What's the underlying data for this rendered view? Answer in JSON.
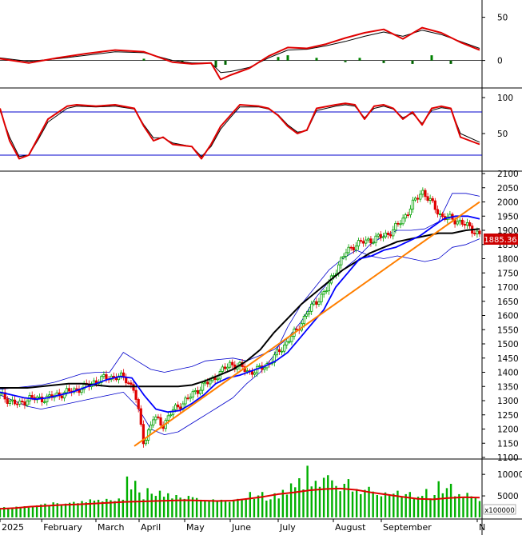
{
  "colors": {
    "background": "#ffffff",
    "border": "#000000",
    "grid_line": "#000000",
    "up_candle": "#00a000",
    "down_candle": "#e00000",
    "macd_line": "#e00000",
    "signal_line": "#000000",
    "histogram_pos": "#008000",
    "histogram_neg": "#006400",
    "stoch_k": "#e00000",
    "stoch_d": "#000000",
    "stoch_levels": "#0000cc",
    "ma_short": "#0000ff",
    "ma_long": "#000000",
    "bollinger": "#0000cc",
    "trendline": "#ff7f00",
    "volume_bars": "#00b000",
    "volume_ma": "#e00000",
    "price_tag_bg": "#cc0000",
    "price_tag_text": "#ffffff"
  },
  "chart_data": [
    {
      "type": "line",
      "panel": "macd",
      "ylim": [
        -30,
        70
      ],
      "yticks": [
        0,
        50
      ],
      "x": [
        0,
        6,
        12,
        18,
        24,
        30,
        36,
        40,
        44,
        46,
        48,
        52,
        56,
        60,
        64,
        68,
        72,
        76,
        80,
        84,
        88,
        92,
        96,
        100
      ],
      "series": [
        {
          "values": [
            2,
            -3,
            3,
            8,
            12,
            10,
            -2,
            -4,
            -3,
            -22,
            -17,
            -9,
            5,
            15,
            14,
            19,
            26,
            32,
            36,
            25,
            38,
            32,
            21,
            12
          ]
        },
        {
          "values": [
            3,
            -1,
            2,
            6,
            10,
            9,
            0,
            -3,
            -3,
            -14,
            -13,
            -8,
            3,
            12,
            13,
            17,
            22,
            28,
            33,
            28,
            35,
            30,
            22,
            14
          ]
        }
      ],
      "histogram": [
        {
          "x": 30,
          "value": 2
        },
        {
          "x": 38,
          "value": -3
        },
        {
          "x": 45,
          "value": -8
        },
        {
          "x": 47,
          "value": -5
        },
        {
          "x": 58,
          "value": 4
        },
        {
          "x": 60,
          "value": 6
        },
        {
          "x": 66,
          "value": 3
        },
        {
          "x": 72,
          "value": -2
        },
        {
          "x": 75,
          "value": 3
        },
        {
          "x": 80,
          "value": -3
        },
        {
          "x": 86,
          "value": -4
        },
        {
          "x": 90,
          "value": 6
        },
        {
          "x": 94,
          "value": -4
        }
      ]
    },
    {
      "type": "line",
      "panel": "stochastic",
      "ylim": [
        0,
        110
      ],
      "yticks": [
        50,
        100
      ],
      "levels": [
        20,
        80
      ],
      "x": [
        0,
        2,
        4,
        6,
        8,
        10,
        14,
        16,
        20,
        24,
        28,
        30,
        32,
        34,
        36,
        40,
        42,
        44,
        46,
        48,
        50,
        54,
        56,
        58,
        60,
        62,
        64,
        66,
        70,
        72,
        74,
        76,
        78,
        80,
        82,
        84,
        86,
        88,
        90,
        92,
        94,
        96,
        100
      ],
      "series": [
        {
          "values": [
            85,
            40,
            15,
            20,
            45,
            70,
            88,
            90,
            88,
            90,
            85,
            60,
            40,
            45,
            35,
            32,
            15,
            35,
            60,
            75,
            90,
            88,
            85,
            75,
            60,
            50,
            55,
            85,
            90,
            92,
            90,
            70,
            88,
            90,
            85,
            70,
            80,
            62,
            85,
            88,
            85,
            45,
            35
          ]
        },
        {
          "values": [
            82,
            45,
            18,
            20,
            42,
            66,
            85,
            88,
            87,
            88,
            84,
            62,
            44,
            44,
            37,
            32,
            18,
            32,
            56,
            72,
            87,
            87,
            84,
            76,
            62,
            52,
            54,
            82,
            88,
            90,
            88,
            72,
            85,
            88,
            84,
            72,
            78,
            64,
            82,
            86,
            84,
            50,
            38
          ]
        }
      ]
    },
    {
      "type": "candlestick",
      "panel": "price",
      "ylim": [
        1100,
        2100
      ],
      "yticks": [
        1100,
        1150,
        1200,
        1250,
        1300,
        1350,
        1400,
        1450,
        1500,
        1550,
        1600,
        1650,
        1700,
        1750,
        1800,
        1850,
        1900,
        1950,
        2000,
        2050,
        2100
      ],
      "last_price": "1885.36",
      "x_labels": [
        "2025",
        "February",
        "March",
        "April",
        "May",
        "June",
        "July",
        "August",
        "September",
        "N"
      ],
      "x_label_positions": [
        0,
        8.7,
        20,
        29,
        38.5,
        48,
        58,
        69.5,
        79.5,
        99.5
      ],
      "close": [
        1320,
        1300,
        1285,
        1310,
        1305,
        1310,
        1320,
        1330,
        1340,
        1350,
        1370,
        1380,
        1385,
        1380,
        1340,
        1150,
        1240,
        1215,
        1265,
        1290,
        1320,
        1350,
        1370,
        1400,
        1430,
        1420,
        1400,
        1410,
        1430,
        1470,
        1510,
        1550,
        1610,
        1650,
        1690,
        1760,
        1820,
        1850,
        1860,
        1870,
        1880,
        1900,
        1940,
        1990,
        2040,
        1950,
        1930,
        1885.36
      ],
      "close_x": [
        0,
        2,
        4,
        6,
        8,
        10,
        12,
        14,
        16,
        18,
        20,
        22,
        24,
        26,
        28,
        30,
        32,
        34,
        36,
        38,
        40,
        42,
        44,
        46,
        48,
        50,
        52,
        54,
        56,
        58,
        60,
        62,
        64,
        66,
        68,
        70,
        72,
        74,
        76,
        78,
        80,
        82,
        84,
        86,
        88,
        92,
        96,
        100
      ],
      "ma_short": [
        1330,
        1320,
        1310,
        1305,
        1310,
        1320,
        1330,
        1345,
        1360,
        1375,
        1385,
        1380,
        1320,
        1270,
        1260,
        1265,
        1290,
        1320,
        1360,
        1380,
        1390,
        1405,
        1420,
        1440,
        1470,
        1520,
        1570,
        1620,
        1700,
        1750,
        1800,
        1810,
        1830,
        1840,
        1860,
        1880,
        1910,
        1940,
        1950,
        1950,
        1940
      ],
      "ma_long": [
        1345,
        1345,
        1345,
        1350,
        1355,
        1360,
        1360,
        1355,
        1350,
        1350,
        1350,
        1350,
        1350,
        1350,
        1355,
        1370,
        1390,
        1410,
        1440,
        1480,
        1540,
        1590,
        1640,
        1680,
        1720,
        1760,
        1790,
        1820,
        1840,
        1860,
        1870,
        1880,
        1890,
        1890,
        1900,
        1905
      ],
      "bollinger_upper": [
        1340,
        1345,
        1350,
        1355,
        1365,
        1380,
        1395,
        1400,
        1400,
        1470,
        1440,
        1410,
        1400,
        1410,
        1420,
        1440,
        1445,
        1450,
        1440,
        1460,
        1480,
        1520,
        1580,
        1660,
        1720,
        1760,
        1800,
        1850,
        1880,
        1900,
        1900,
        1905,
        1930,
        2030,
        2030,
        2020
      ],
      "bollinger_lower": [
        1320,
        1300,
        1280,
        1270,
        1280,
        1290,
        1300,
        1310,
        1320,
        1330,
        1280,
        1200,
        1180,
        1190,
        1220,
        1250,
        1280,
        1310,
        1360,
        1400,
        1460,
        1560,
        1640,
        1700,
        1760,
        1800,
        1830,
        1810,
        1800,
        1810,
        1800,
        1790,
        1800,
        1840,
        1850,
        1870
      ],
      "trendline": {
        "x": [
          28,
          100
        ],
        "y": [
          1140,
          2000
        ]
      }
    },
    {
      "type": "bar",
      "panel": "volume",
      "ylim": [
        0,
        13000
      ],
      "yticks": [
        5000,
        10000
      ],
      "unit_label": "x100000",
      "values": [
        2200,
        2400,
        2100,
        2300,
        2500,
        2200,
        2600,
        2300,
        2500,
        2800,
        3000,
        3200,
        2800,
        3500,
        3300,
        3000,
        3200,
        3400,
        3600,
        3300,
        3800,
        3500,
        4200,
        3900,
        4100,
        3700,
        4300,
        4000,
        3800,
        4400,
        4100,
        9500,
        6500,
        8500,
        5800,
        4200,
        6800,
        5500,
        5000,
        6200,
        4800,
        5600,
        4400,
        5200,
        4600,
        4300,
        5000,
        4700,
        4500,
        4100,
        3800,
        4000,
        4200,
        3900,
        4100,
        3700,
        3600,
        3900,
        4300,
        4100,
        4400,
        5900,
        4300,
        5100,
        5900,
        3900,
        4200,
        5600,
        4400,
        6400,
        5300,
        7900,
        7000,
        9100,
        6500,
        12000,
        7200,
        8500,
        7100,
        9200,
        9800,
        8600,
        7300,
        6100,
        7800,
        8900,
        6000,
        6600,
        5400,
        6400,
        7100,
        6000,
        5200,
        4900,
        5800,
        5100,
        5500,
        6200,
        4900,
        5400,
        5900,
        4500,
        4800,
        5000,
        6600,
        4400,
        5200,
        8400,
        5600,
        6800,
        7800,
        4900,
        5400,
        4700,
        5700,
        4900,
        4500,
        3800
      ],
      "ma": [
        2000,
        2200,
        2500,
        2700,
        2900,
        3000,
        3200,
        3400,
        3600,
        3700,
        3800,
        3900,
        4000,
        3900,
        3800,
        3900,
        4300,
        4800,
        5400,
        5800,
        6300,
        6600,
        6700,
        6400,
        5800,
        5300,
        4800,
        4300,
        4200,
        4500,
        4700,
        4600
      ]
    }
  ]
}
